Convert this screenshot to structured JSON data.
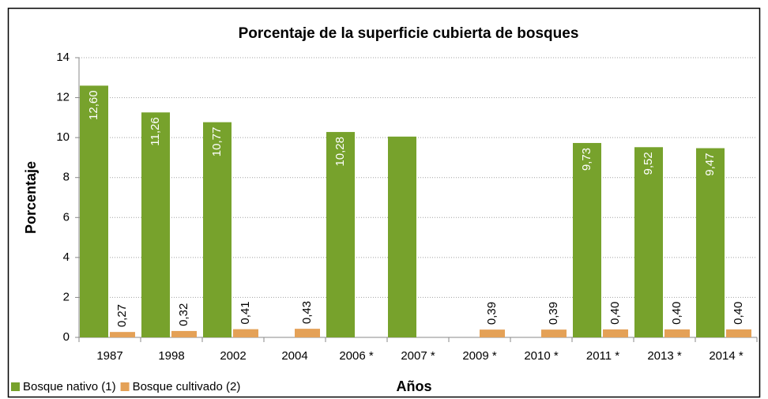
{
  "chart_data": {
    "type": "bar",
    "title": "Porcentaje de la superficie cubierta de bosques",
    "x_label": "Años",
    "y_label": "Porcentaje",
    "categories": [
      "1987",
      "1998",
      "2002",
      "2004",
      "2006 *",
      "2007 *",
      "2009 *",
      "2010 *",
      "2011 *",
      "2013 *",
      "2014 *"
    ],
    "series": [
      {
        "name": "Bosque nativo (1)",
        "color": "#77a22c",
        "values": [
          12.6,
          11.26,
          10.77,
          null,
          10.28,
          10.05,
          null,
          null,
          9.73,
          9.52,
          9.47
        ],
        "value_labels": [
          "12,60",
          "11,26",
          "10,77",
          null,
          "10,28",
          null,
          null,
          null,
          "9,73",
          "9,52",
          "9,47"
        ]
      },
      {
        "name": "Bosque cultivado (2)",
        "color": "#e4a157",
        "values": [
          0.27,
          0.32,
          0.41,
          0.43,
          null,
          null,
          0.39,
          0.39,
          0.4,
          0.4,
          0.4
        ],
        "value_labels": [
          "0,27",
          "0,32",
          "0,41",
          "0,43",
          null,
          null,
          "0,39",
          "0,39",
          "0,40",
          "0,40",
          "0,40"
        ]
      }
    ],
    "ylim": [
      0,
      14
    ],
    "yticks": [
      0,
      2,
      4,
      6,
      8,
      10,
      12,
      14
    ],
    "grid": true,
    "legend": "bottom-left"
  }
}
